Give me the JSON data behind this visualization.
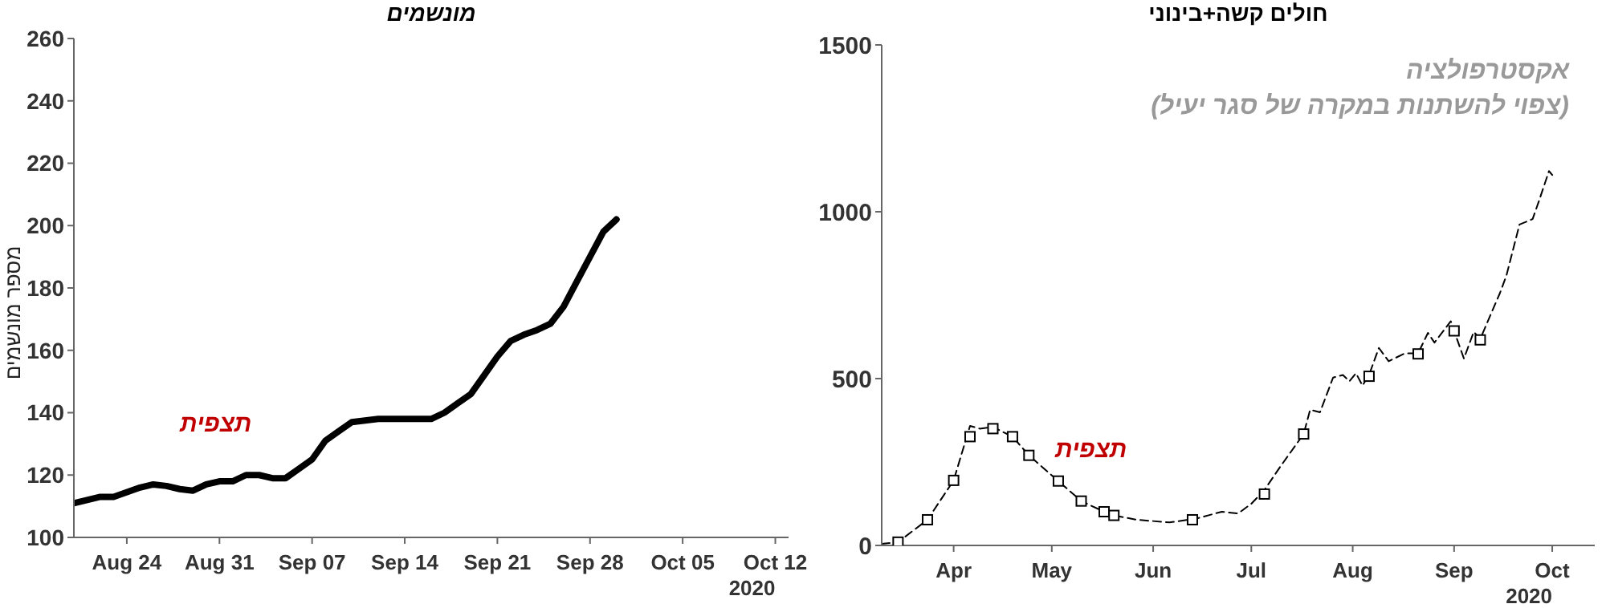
{
  "chart_data": [
    {
      "type": "line",
      "title": "מונשמים",
      "ylabel": "מספר מונשמים",
      "xlim": [
        "2020-08-20",
        "2020-10-13"
      ],
      "ylim": [
        100,
        260
      ],
      "yticks": [
        100,
        120,
        140,
        160,
        180,
        200,
        220,
        240,
        260
      ],
      "xticks": [
        {
          "value": "2020-08-24",
          "label": "Aug 24"
        },
        {
          "value": "2020-08-31",
          "label": "Aug 31"
        },
        {
          "value": "2020-09-07",
          "label": "Sep 07"
        },
        {
          "value": "2020-09-14",
          "label": "Sep 14"
        },
        {
          "value": "2020-09-21",
          "label": "Sep 21"
        },
        {
          "value": "2020-09-28",
          "label": "Sep 28"
        },
        {
          "value": "2020-10-05",
          "label": "Oct 05"
        },
        {
          "value": "2020-10-12",
          "label": "Oct 12\n2020"
        }
      ],
      "grid": false,
      "legend": false,
      "marker": "none",
      "line_style": "solid",
      "annotations": [
        "תצפית"
      ],
      "series": [
        {
          "color": "#000000",
          "x": [
            "2020-08-20",
            "2020-08-22",
            "2020-08-23",
            "2020-08-25",
            "2020-08-26",
            "2020-08-27",
            "2020-08-28",
            "2020-08-29",
            "2020-08-30",
            "2020-08-31",
            "2020-09-01",
            "2020-09-02",
            "2020-09-03",
            "2020-09-04",
            "2020-09-05",
            "2020-09-06",
            "2020-09-07",
            "2020-09-08",
            "2020-09-09",
            "2020-09-10",
            "2020-09-12",
            "2020-09-13",
            "2020-09-14",
            "2020-09-16",
            "2020-09-17",
            "2020-09-18",
            "2020-09-19",
            "2020-09-20",
            "2020-09-21",
            "2020-09-22",
            "2020-09-23",
            "2020-09-24",
            "2020-09-25",
            "2020-09-26",
            "2020-09-27",
            "2020-09-28",
            "2020-09-29",
            "2020-09-30"
          ],
          "values": [
            111,
            113,
            113,
            116,
            117,
            116.5,
            115.5,
            115,
            117,
            118,
            118,
            120,
            120,
            119,
            119,
            122,
            125,
            131,
            134,
            137,
            138,
            138,
            138,
            138,
            140,
            143,
            146,
            152,
            158,
            163,
            165,
            166.5,
            168.5,
            174,
            182,
            190,
            198,
            202
          ]
        }
      ]
    },
    {
      "type": "line",
      "title": "חולים קשה+בינוני",
      "xlim": [
        "2020-03-10",
        "2020-10-14"
      ],
      "ylim": [
        0,
        1500
      ],
      "yticks": [
        0,
        500,
        1000,
        1500
      ],
      "xticks": [
        {
          "value": "2020-04-01",
          "label": "Apr"
        },
        {
          "value": "2020-05-01",
          "label": "May"
        },
        {
          "value": "2020-06-01",
          "label": "Jun"
        },
        {
          "value": "2020-07-01",
          "label": "Jul"
        },
        {
          "value": "2020-08-01",
          "label": "Aug"
        },
        {
          "value": "2020-09-01",
          "label": "Sep"
        },
        {
          "value": "2020-10-01",
          "label": "Oct\n2020"
        }
      ],
      "grid": false,
      "legend": false,
      "annotations": [
        "אקסטרפולציה",
        "(צפוי להשתנות במקרה של סגר יעיל)",
        "תצפית"
      ],
      "series": [
        {
          "color": "#000000",
          "line_style": "dashed",
          "marker": "none",
          "x": [
            "2020-03-10",
            "2020-03-15",
            "2020-03-24",
            "2020-04-01",
            "2020-04-06",
            "2020-04-09",
            "2020-04-13",
            "2020-04-19",
            "2020-04-24",
            "2020-05-03",
            "2020-05-10",
            "2020-05-17",
            "2020-05-20",
            "2020-05-27",
            "2020-06-06",
            "2020-06-14",
            "2020-06-22",
            "2020-06-27",
            "2020-07-01",
            "2020-07-05",
            "2020-07-10",
            "2020-07-17",
            "2020-07-19",
            "2020-07-22",
            "2020-07-26",
            "2020-07-29",
            "2020-07-31",
            "2020-08-02",
            "2020-08-04",
            "2020-08-06",
            "2020-08-09",
            "2020-08-12",
            "2020-08-17",
            "2020-08-21",
            "2020-08-24",
            "2020-08-26",
            "2020-08-31",
            "2020-09-01",
            "2020-09-04",
            "2020-09-07",
            "2020-09-09",
            "2020-09-12",
            "2020-09-15",
            "2020-09-17",
            "2020-09-21",
            "2020-09-25",
            "2020-09-27",
            "2020-09-30",
            "2020-10-01"
          ],
          "values": [
            5,
            10,
            77,
            195,
            358,
            350,
            355,
            326,
            270,
            193,
            133,
            101,
            90,
            77,
            69,
            80,
            101,
            96,
            125,
            166,
            238,
            334,
            407,
            399,
            503,
            511,
            492,
            516,
            479,
            511,
            592,
            552,
            576,
            576,
            637,
            608,
            672,
            643,
            560,
            640,
            619,
            688,
            756,
            809,
            962,
            978,
            1034,
            1122,
            1110
          ]
        },
        {
          "type": "scatter",
          "color": "#000000",
          "marker": "square",
          "x": [
            "2020-03-15",
            "2020-03-24",
            "2020-04-01",
            "2020-04-06",
            "2020-04-13",
            "2020-04-19",
            "2020-04-24",
            "2020-05-03",
            "2020-05-10",
            "2020-05-17",
            "2020-05-20",
            "2020-06-13",
            "2020-07-05",
            "2020-07-17",
            "2020-08-06",
            "2020-08-21",
            "2020-09-01",
            "2020-09-09"
          ],
          "values": [
            10,
            77,
            195,
            326,
            350,
            326,
            270,
            193,
            133,
            101,
            90,
            77,
            154,
            334,
            507,
            574,
            643,
            616
          ]
        }
      ]
    }
  ]
}
